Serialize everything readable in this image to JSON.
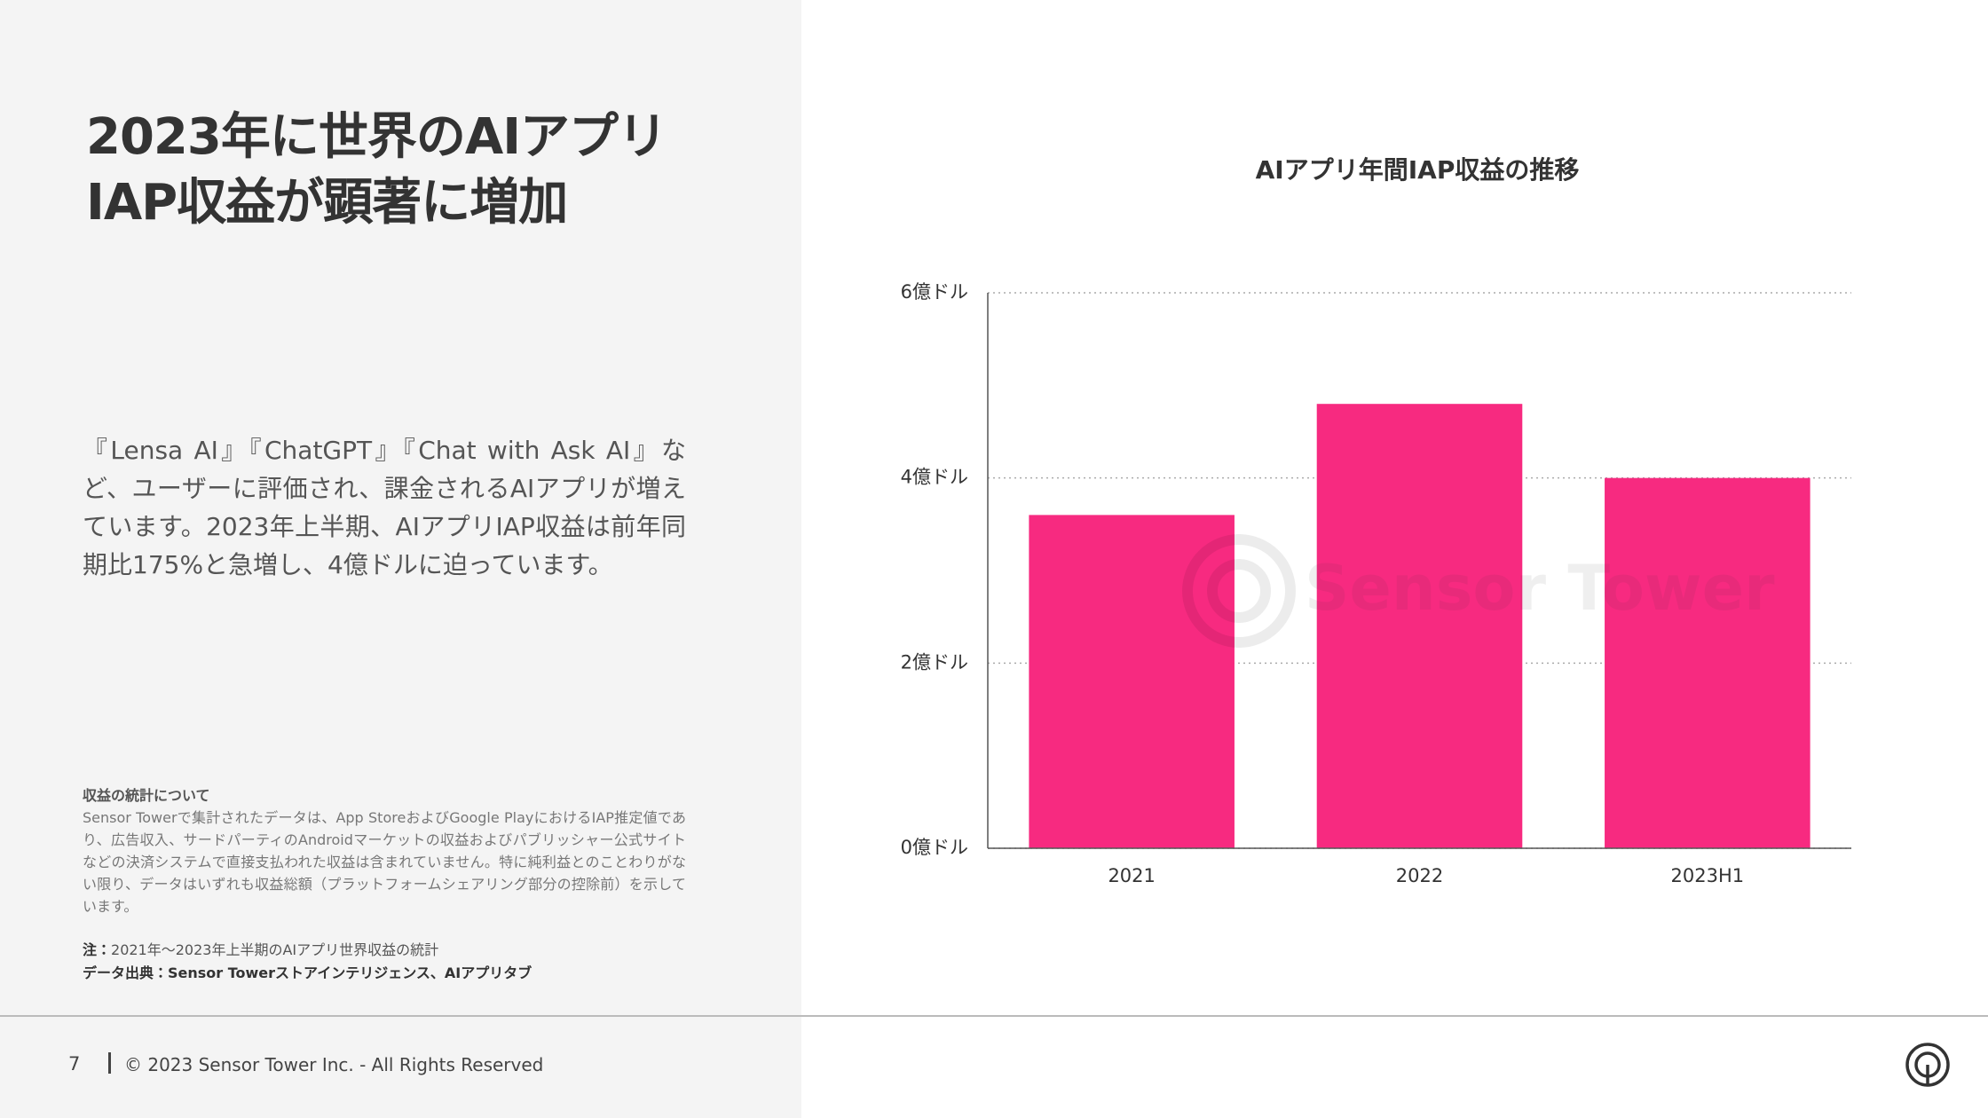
{
  "slide": {
    "title_lines": [
      "2023年に世界のAIアプリ",
      "IAP収益が顕著に増加"
    ],
    "body": "『Lensa AI』『ChatGPT』『Chat with Ask AI』など、ユーザーに評価され、課金されるAIアプリが増えています。2023年上半期、AIアプリIAP収益は前年同期比175%と急増し、4億ドルに迫っています。",
    "notes_heading": "収益の統計について",
    "notes_body": "Sensor Towerで集計されたデータは、App StoreおよびGoogle PlayにおけるIAP推定値であり、広告収入、サードパーティのAndroidマーケットの収益およびパブリッシャー公式サイトなどの決済システムで直接支払われた収益は含まれていません。特に純利益とのことわりがない限り、データはいずれも収益総額（プラットフォームシェアリング部分の控除前）を示しています。",
    "note_label": "注：",
    "note_text": "2021年～2023年上半期のAIアプリ世界収益の統計",
    "source": "データ出典：Sensor Towerストアインテリジェンス、AIアプリタブ",
    "page_number": "7",
    "copyright": "© 2023 Sensor Tower Inc. - All Rights Reserved",
    "watermark": "Sensor Tower"
  },
  "chart_data": {
    "type": "bar",
    "title": "AIアプリ年間IAP収益の推移",
    "categories": [
      "2021",
      "2022",
      "2023H1"
    ],
    "values": [
      3.6,
      4.8,
      4.0
    ],
    "color": "#f72a80",
    "ylim": [
      0,
      6
    ],
    "yticks": [
      {
        "value": 0,
        "label": "0億ドル"
      },
      {
        "value": 2,
        "label": "2億ドル"
      },
      {
        "value": 4,
        "label": "4億ドル"
      },
      {
        "value": 6,
        "label": "6億ドル"
      }
    ],
    "grid": true
  }
}
